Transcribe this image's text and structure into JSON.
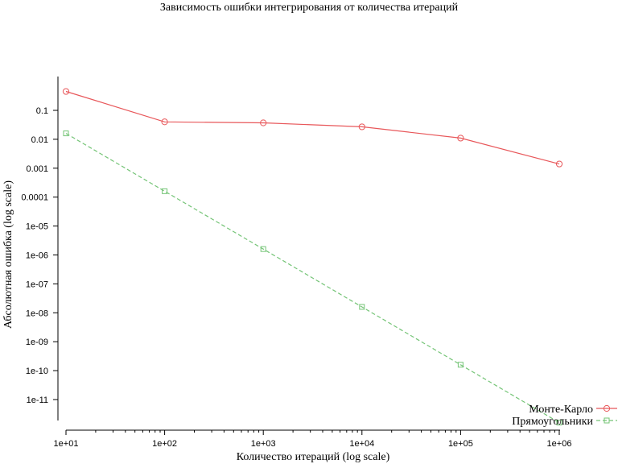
{
  "chart_data": {
    "type": "line",
    "title": "Зависимость ошибки интегрирования от количества итераций",
    "xlabel": "Количество итераций (log scale)",
    "ylabel": "Абсолютная ошибка (log scale)",
    "x_scale": "log",
    "y_scale": "log",
    "xlim": [
      10,
      1000000
    ],
    "ylim": [
      1e-12,
      1
    ],
    "x_ticks": [
      10,
      100,
      1000,
      10000,
      100000,
      1000000
    ],
    "x_tick_labels": [
      "1e+01",
      "1e+02",
      "1e+03",
      "1e+04",
      "1e+05",
      "1e+06"
    ],
    "y_ticks": [
      1e-11,
      1e-10,
      1e-09,
      1e-08,
      1e-07,
      1e-06,
      1e-05,
      0.0001,
      0.001,
      0.01,
      0.1
    ],
    "y_tick_labels": [
      "1e-11",
      "1e-10",
      "1e-09",
      "1e-08",
      "1e-07",
      "1e-06",
      "1e-05",
      "0.0001",
      "0.001",
      "0.01",
      "0.1"
    ],
    "grid": false,
    "legend_position": "bottom-right",
    "x": [
      10,
      100,
      1000,
      10000,
      100000,
      1000000
    ],
    "series": [
      {
        "name": "Монте-Карло",
        "values": [
          0.45,
          0.04,
          0.037,
          0.027,
          0.011,
          0.0014
        ],
        "color": "#e8575a",
        "marker": "circle",
        "line_style": "solid"
      },
      {
        "name": "Прямоугольники",
        "values": [
          0.016,
          0.00016,
          1.6e-06,
          1.6e-08,
          1.6e-10,
          1.6e-12
        ],
        "color": "#74c476",
        "marker": "square",
        "line_style": "dashed"
      }
    ]
  }
}
